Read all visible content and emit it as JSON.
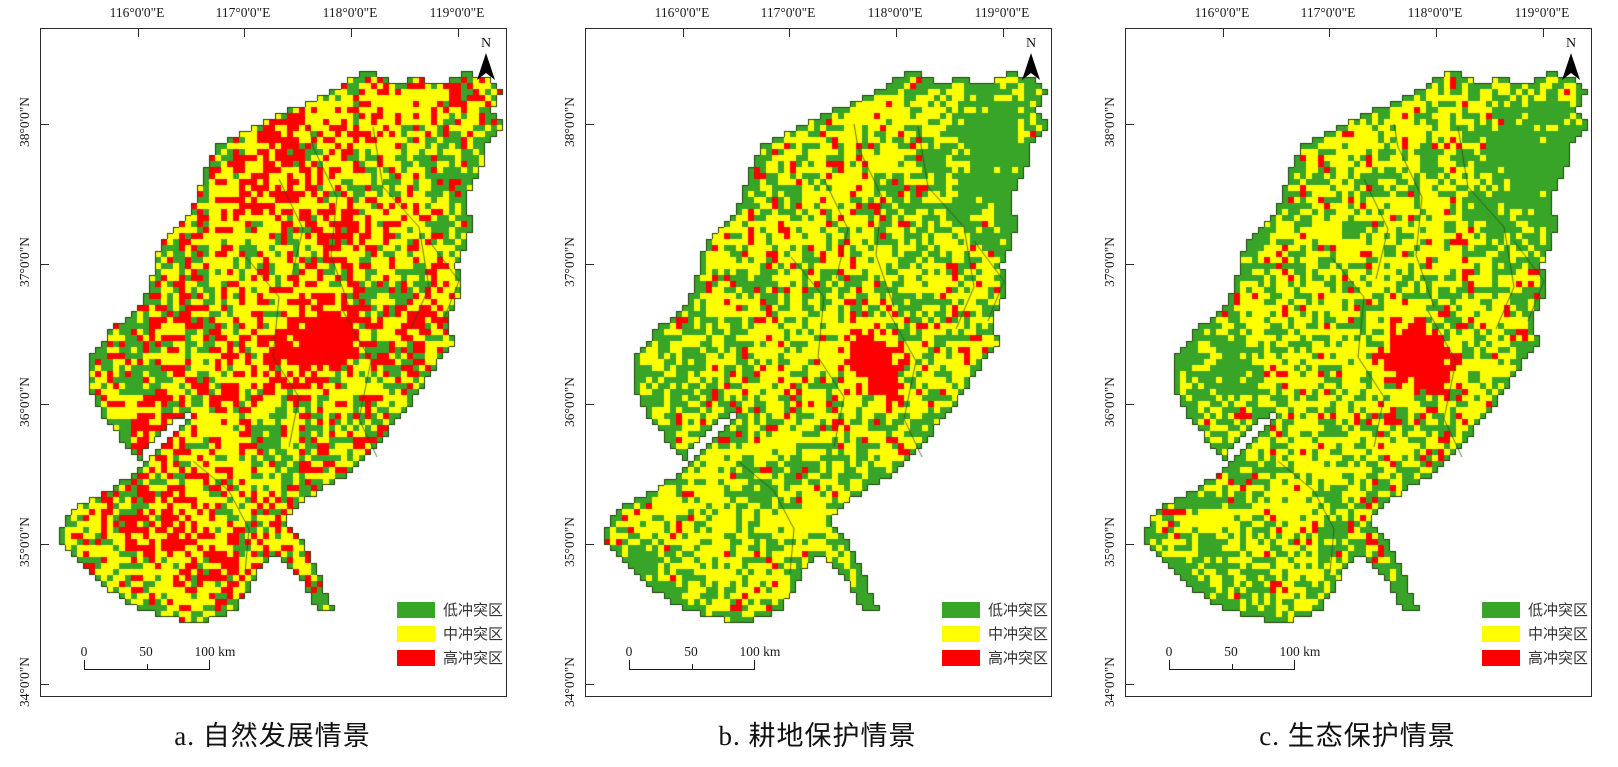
{
  "figure": {
    "north_label": "N"
  },
  "axes": {
    "lon_labels": [
      "116°0'0\"E",
      "117°0'0\"E",
      "118°0'0\"E",
      "119°0'0\"E"
    ],
    "lat_labels": [
      "38°0'0\"N",
      "37°0'0\"N",
      "36°0'0\"N",
      "35°0'0\"N",
      "34°0'0\"N"
    ]
  },
  "legend": {
    "items": [
      {
        "label": "低冲突区",
        "color": "#38a428"
      },
      {
        "label": "中冲突区",
        "color": "#ffff00"
      },
      {
        "label": "高冲突区",
        "color": "#ff0000"
      }
    ]
  },
  "scale_bar": {
    "labels": [
      "0",
      "50",
      "100 km"
    ]
  },
  "colors": {
    "low": "#38a428",
    "mid": "#ffff00",
    "high": "#ff0000",
    "outline": "#1d3d0a",
    "inner_line": "#2a4a10"
  },
  "map_shape": {
    "outline": [
      [
        330,
        40
      ],
      [
        352,
        56
      ],
      [
        375,
        48
      ],
      [
        398,
        56
      ],
      [
        420,
        44
      ],
      [
        448,
        46
      ],
      [
        462,
        64
      ],
      [
        452,
        80
      ],
      [
        464,
        96
      ],
      [
        448,
        112
      ],
      [
        440,
        140
      ],
      [
        426,
        170
      ],
      [
        432,
        200
      ],
      [
        416,
        235
      ],
      [
        424,
        258
      ],
      [
        405,
        290
      ],
      [
        415,
        315
      ],
      [
        398,
        332
      ],
      [
        380,
        360
      ],
      [
        362,
        385
      ],
      [
        340,
        412
      ],
      [
        322,
        430
      ],
      [
        308,
        444
      ],
      [
        270,
        468
      ],
      [
        240,
        492
      ],
      [
        258,
        505
      ],
      [
        272,
        530
      ],
      [
        293,
        582
      ],
      [
        280,
        585
      ],
      [
        258,
        548
      ],
      [
        238,
        530
      ],
      [
        222,
        532
      ],
      [
        212,
        556
      ],
      [
        196,
        580
      ],
      [
        165,
        593
      ],
      [
        128,
        590
      ],
      [
        90,
        578
      ],
      [
        55,
        552
      ],
      [
        25,
        522
      ],
      [
        18,
        507
      ],
      [
        28,
        482
      ],
      [
        55,
        468
      ],
      [
        82,
        452
      ],
      [
        122,
        415
      ],
      [
        158,
        375
      ],
      [
        126,
        398
      ],
      [
        104,
        424
      ],
      [
        100,
        432
      ],
      [
        78,
        408
      ],
      [
        52,
        372
      ],
      [
        47,
        330
      ],
      [
        70,
        300
      ],
      [
        100,
        278
      ],
      [
        112,
        240
      ],
      [
        120,
        210
      ],
      [
        150,
        185
      ],
      [
        160,
        150
      ],
      [
        177,
        115
      ],
      [
        230,
        90
      ],
      [
        280,
        66
      ]
    ],
    "inner_lines": [
      [
        [
          268,
          95
        ],
        [
          272,
          118
        ],
        [
          296,
          168
        ],
        [
          290,
          226
        ],
        [
          308,
          278
        ]
      ],
      [
        [
          332,
          98
        ],
        [
          342,
          158
        ],
        [
          378,
          198
        ],
        [
          388,
          258
        ],
        [
          370,
          300
        ]
      ],
      [
        [
          205,
          228
        ],
        [
          238,
          268
        ],
        [
          232,
          328
        ],
        [
          258,
          368
        ],
        [
          248,
          418
        ]
      ],
      [
        [
          302,
          282
        ],
        [
          330,
          332
        ],
        [
          318,
          390
        ],
        [
          336,
          428
        ]
      ],
      [
        [
          152,
          432
        ],
        [
          188,
          462
        ],
        [
          208,
          500
        ],
        [
          204,
          544
        ]
      ],
      [
        [
          388,
          212
        ],
        [
          418,
          252
        ],
        [
          402,
          292
        ]
      ],
      [
        [
          238,
          150
        ],
        [
          262,
          200
        ],
        [
          250,
          250
        ]
      ]
    ]
  },
  "panels": [
    {
      "id": "a",
      "caption": "a. 自然发展情景",
      "seed": 11,
      "base_red": 0.26,
      "base_green": 0.3,
      "edge_green_bias": 0.5,
      "red_spots": [
        [
          240,
          140,
          58,
          0.35
        ],
        [
          300,
          195,
          40,
          0.3
        ],
        [
          270,
          320,
          52,
          0.6
        ],
        [
          305,
          300,
          40,
          0.45
        ],
        [
          380,
          290,
          32,
          0.3
        ],
        [
          120,
          390,
          38,
          0.3
        ],
        [
          125,
          500,
          45,
          0.4
        ],
        [
          185,
          545,
          38,
          0.35
        ],
        [
          90,
          450,
          30,
          0.25
        ],
        [
          205,
          330,
          35,
          0.3
        ]
      ],
      "green_spots": [
        [
          430,
          160,
          70,
          0.4
        ],
        [
          350,
          235,
          38,
          0.22
        ],
        [
          88,
          330,
          48,
          0.3
        ],
        [
          60,
          540,
          38,
          0.3
        ],
        [
          290,
          560,
          42,
          0.5
        ],
        [
          228,
          432,
          32,
          0.3
        ],
        [
          360,
          75,
          45,
          -0.45
        ],
        [
          160,
          590,
          30,
          0.25
        ]
      ]
    },
    {
      "id": "b",
      "caption": "b. 耕地保护情景",
      "seed": 23,
      "base_red": 0.035,
      "base_green": 0.34,
      "edge_green_bias": 0.85,
      "red_spots": [
        [
          285,
          330,
          42,
          0.75
        ],
        [
          255,
          388,
          20,
          0.5
        ],
        [
          305,
          362,
          24,
          0.45
        ],
        [
          398,
          345,
          20,
          0.42
        ],
        [
          265,
          155,
          45,
          0.16
        ],
        [
          330,
          300,
          25,
          0.3
        ]
      ],
      "green_spots": [
        [
          420,
          140,
          100,
          0.55
        ],
        [
          350,
          205,
          50,
          0.28
        ],
        [
          88,
          330,
          50,
          0.35
        ],
        [
          290,
          560,
          45,
          0.55
        ],
        [
          60,
          540,
          40,
          0.35
        ],
        [
          220,
          430,
          35,
          0.3
        ],
        [
          160,
          480,
          35,
          0.2
        ]
      ]
    },
    {
      "id": "c",
      "caption": "c. 生态保护情景",
      "seed": 37,
      "base_red": 0.03,
      "base_green": 0.4,
      "edge_green_bias": 0.9,
      "red_spots": [
        [
          290,
          325,
          46,
          0.75
        ],
        [
          255,
          392,
          24,
          0.55
        ],
        [
          322,
          356,
          24,
          0.4
        ],
        [
          420,
          330,
          24,
          0.45
        ],
        [
          432,
          298,
          16,
          0.35
        ],
        [
          352,
          250,
          18,
          0.3
        ]
      ],
      "green_spots": [
        [
          420,
          140,
          105,
          0.6
        ],
        [
          88,
          330,
          55,
          0.4
        ],
        [
          290,
          560,
          45,
          0.6
        ],
        [
          60,
          540,
          45,
          0.4
        ],
        [
          200,
          250,
          40,
          0.18
        ],
        [
          220,
          430,
          35,
          0.3
        ]
      ]
    }
  ]
}
